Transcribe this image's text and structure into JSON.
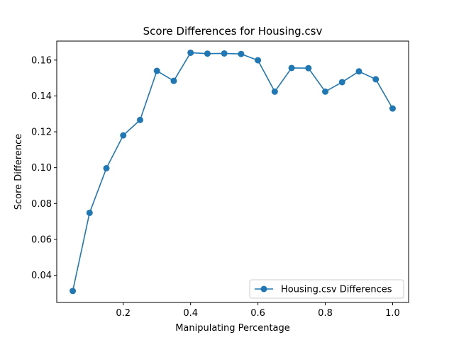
{
  "chart_data": {
    "type": "line",
    "title": "Score Differences for Housing.csv",
    "xlabel": "Manipulating Percentage",
    "ylabel": "Score Difference",
    "xlim": [
      0.0025,
      1.0475
    ],
    "ylim": [
      0.0248,
      0.1706
    ],
    "xticks": [
      0.2,
      0.4,
      0.6,
      0.8,
      1.0
    ],
    "xtick_labels": [
      "0.2",
      "0.4",
      "0.6",
      "0.8",
      "1.0"
    ],
    "yticks": [
      0.04,
      0.06,
      0.08,
      0.1,
      0.12,
      0.14,
      0.16
    ],
    "ytick_labels": [
      "0.04",
      "0.06",
      "0.08",
      "0.10",
      "0.12",
      "0.14",
      "0.16"
    ],
    "grid": false,
    "legend_position": "lower-right",
    "series": [
      {
        "name": "Housing.csv Differences",
        "color": "#1f77b4",
        "marker": "circle",
        "x": [
          0.05,
          0.1,
          0.15,
          0.2,
          0.25,
          0.3,
          0.35,
          0.4,
          0.45,
          0.5,
          0.55,
          0.6,
          0.65,
          0.7,
          0.75,
          0.8,
          0.85,
          0.9,
          0.95,
          1.0
        ],
        "y": [
          0.0312,
          0.0748,
          0.0997,
          0.118,
          0.1266,
          0.154,
          0.1484,
          0.1641,
          0.1636,
          0.1637,
          0.1634,
          0.1599,
          0.1424,
          0.1556,
          0.1555,
          0.1424,
          0.1477,
          0.1537,
          0.1493,
          0.133
        ]
      }
    ]
  }
}
